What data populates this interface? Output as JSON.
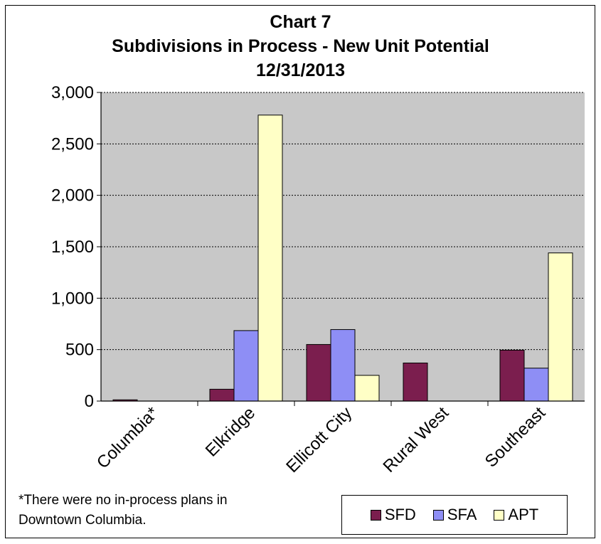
{
  "chart_data": {
    "type": "bar",
    "title": [
      "Chart 7",
      "Subdivisions in Process - New Unit Potential",
      "12/31/2013"
    ],
    "categories": [
      "Columbia*",
      "Elkridge",
      "Ellicott City",
      "Rural West",
      "Southeast"
    ],
    "series": [
      {
        "name": "SFD",
        "color": "#7B1E4E",
        "values": [
          12,
          115,
          550,
          370,
          495
        ]
      },
      {
        "name": "SFA",
        "color": "#8E8EF5",
        "values": [
          0,
          685,
          695,
          0,
          320
        ]
      },
      {
        "name": "APT",
        "color": "#FFFFC6",
        "values": [
          0,
          2780,
          250,
          0,
          1440
        ]
      }
    ],
    "ylim": [
      0,
      3000
    ],
    "yticks": [
      0,
      500,
      1000,
      1500,
      2000,
      2500,
      3000
    ],
    "ytick_labels": [
      "0",
      "500",
      "1,000",
      "1,500",
      "2,000",
      "2,500",
      "3,000"
    ],
    "grid": true,
    "plot_background": "#C8C8C8",
    "legend_position": "bottom-right",
    "footnote": [
      "*There were no in-process plans in",
      "Downtown Columbia."
    ]
  }
}
